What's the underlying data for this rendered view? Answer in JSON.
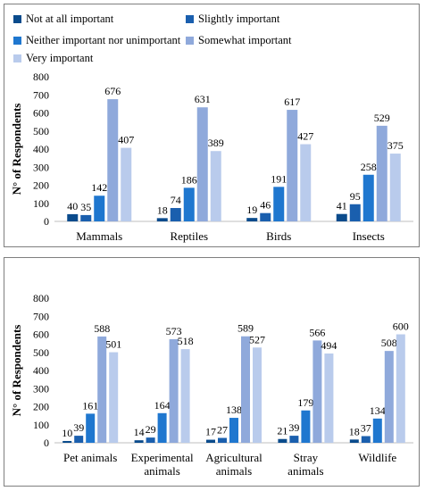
{
  "legend": {
    "items": [
      {
        "label": "Not at all important",
        "color": "#0a4b8c"
      },
      {
        "label": "Slightly important",
        "color": "#1a5fae"
      },
      {
        "label": "Neither important nor unimportant",
        "color": "#1f77cf"
      },
      {
        "label": "Somewhat important",
        "color": "#8fa9db"
      },
      {
        "label": "Very important",
        "color": "#b9cbec"
      }
    ]
  },
  "chart_data": [
    {
      "type": "bar",
      "ylabel": "N° of Respondents",
      "ylim": [
        0,
        800
      ],
      "yticks": [
        0,
        100,
        200,
        300,
        400,
        500,
        600,
        700,
        800
      ],
      "categories": [
        "Mammals",
        "Reptiles",
        "Birds",
        "Insects"
      ],
      "series": [
        {
          "name": "Not at all important",
          "values": [
            40,
            18,
            19,
            41
          ]
        },
        {
          "name": "Slightly important",
          "values": [
            35,
            74,
            46,
            95
          ]
        },
        {
          "name": "Neither important nor unimportant",
          "values": [
            142,
            186,
            191,
            258
          ]
        },
        {
          "name": "Somewhat important",
          "values": [
            676,
            631,
            617,
            529
          ]
        },
        {
          "name": "Very important",
          "values": [
            407,
            389,
            427,
            375
          ]
        }
      ]
    },
    {
      "type": "bar",
      "ylabel": "N° of Respondents",
      "ylim": [
        0,
        800
      ],
      "yticks": [
        0,
        100,
        200,
        300,
        400,
        500,
        600,
        700,
        800
      ],
      "categories": [
        "Pet animals",
        "Experimental animals",
        "Agricultural animals",
        "Stray animals",
        "Wildlife"
      ],
      "series": [
        {
          "name": "Not at all important",
          "values": [
            10,
            14,
            17,
            21,
            18
          ]
        },
        {
          "name": "Slightly important",
          "values": [
            39,
            29,
            27,
            39,
            37
          ]
        },
        {
          "name": "Neither important nor unimportant",
          "values": [
            161,
            164,
            138,
            179,
            134
          ]
        },
        {
          "name": "Somewhat important",
          "values": [
            588,
            573,
            589,
            566,
            508
          ]
        },
        {
          "name": "Very important",
          "values": [
            501,
            518,
            527,
            494,
            600
          ]
        }
      ]
    }
  ]
}
